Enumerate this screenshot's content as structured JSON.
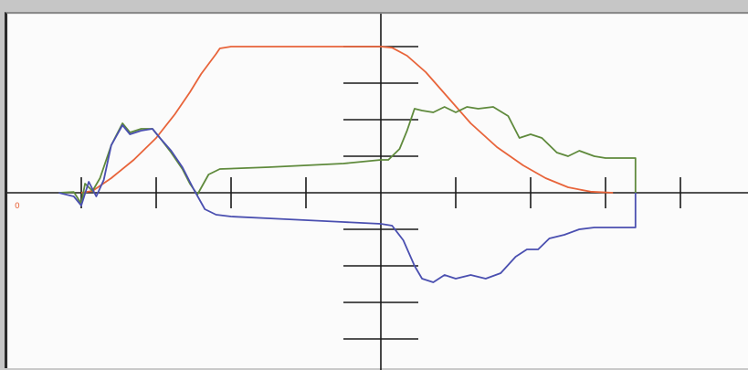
{
  "chart_data": {
    "type": "line",
    "title": "",
    "xlabel": "",
    "ylabel": "",
    "x_range": [
      -5,
      5
    ],
    "y_range": [
      -4,
      4
    ],
    "x_tick_step": 1,
    "y_tick_step": 1,
    "grid": false,
    "legend": "none",
    "origin_label": "0",
    "series": [
      {
        "color": "#e8643a",
        "points": [
          [
            -4,
            0
          ],
          [
            -3.85,
            0.05
          ],
          [
            -3.6,
            0.4
          ],
          [
            -3.3,
            0.9
          ],
          [
            -3,
            1.5
          ],
          [
            -2.75,
            2.15
          ],
          [
            -2.55,
            2.75
          ],
          [
            -2.4,
            3.25
          ],
          [
            -2.2,
            3.8
          ],
          [
            -2.15,
            3.95
          ],
          [
            -2,
            4
          ],
          [
            -1,
            4
          ],
          [
            0,
            4
          ],
          [
            0.15,
            3.97
          ],
          [
            0.35,
            3.75
          ],
          [
            0.6,
            3.3
          ],
          [
            0.9,
            2.6
          ],
          [
            1.2,
            1.9
          ],
          [
            1.55,
            1.25
          ],
          [
            1.9,
            0.75
          ],
          [
            2.2,
            0.4
          ],
          [
            2.5,
            0.15
          ],
          [
            2.8,
            0.03
          ],
          [
            3.1,
            0
          ]
        ]
      },
      {
        "color": "#5f8a3c",
        "points": [
          [
            -4.3,
            0
          ],
          [
            -4.1,
            0.02
          ],
          [
            -4,
            -0.3
          ],
          [
            -3.95,
            0.25
          ],
          [
            -3.85,
            0.05
          ],
          [
            -3.75,
            0.4
          ],
          [
            -3.6,
            1.3
          ],
          [
            -3.45,
            1.9
          ],
          [
            -3.35,
            1.65
          ],
          [
            -3.2,
            1.75
          ],
          [
            -3.05,
            1.75
          ],
          [
            -2.95,
            1.5
          ],
          [
            -2.8,
            1.1
          ],
          [
            -2.65,
            0.65
          ],
          [
            -2.55,
            0.25
          ],
          [
            -2.45,
            -0.05
          ],
          [
            -2.3,
            0.5
          ],
          [
            -2.15,
            0.65
          ],
          [
            -1.5,
            0.7
          ],
          [
            -1,
            0.75
          ],
          [
            -0.5,
            0.8
          ],
          [
            0,
            0.9
          ],
          [
            0.1,
            0.9
          ],
          [
            0.25,
            1.2
          ],
          [
            0.35,
            1.7
          ],
          [
            0.45,
            2.3
          ],
          [
            0.55,
            2.25
          ],
          [
            0.7,
            2.2
          ],
          [
            0.85,
            2.35
          ],
          [
            1,
            2.2
          ],
          [
            1.15,
            2.35
          ],
          [
            1.3,
            2.3
          ],
          [
            1.5,
            2.35
          ],
          [
            1.7,
            2.1
          ],
          [
            1.85,
            1.5
          ],
          [
            2,
            1.6
          ],
          [
            2.15,
            1.5
          ],
          [
            2.35,
            1.1
          ],
          [
            2.5,
            1.0
          ],
          [
            2.65,
            1.15
          ],
          [
            2.85,
            1.0
          ],
          [
            3,
            0.95
          ],
          [
            3.05,
            0.95
          ],
          [
            3.4,
            0.95
          ],
          [
            3.4,
            0
          ]
        ]
      },
      {
        "color": "#4a4fb0",
        "points": [
          [
            -4.3,
            0
          ],
          [
            -4.1,
            -0.1
          ],
          [
            -4,
            -0.35
          ],
          [
            -3.9,
            0.3
          ],
          [
            -3.8,
            -0.1
          ],
          [
            -3.7,
            0.35
          ],
          [
            -3.6,
            1.3
          ],
          [
            -3.45,
            1.85
          ],
          [
            -3.35,
            1.6
          ],
          [
            -3.2,
            1.7
          ],
          [
            -3.05,
            1.75
          ],
          [
            -2.95,
            1.5
          ],
          [
            -2.8,
            1.15
          ],
          [
            -2.65,
            0.7
          ],
          [
            -2.5,
            0.1
          ],
          [
            -2.35,
            -0.45
          ],
          [
            -2.2,
            -0.6
          ],
          [
            -2,
            -0.65
          ],
          [
            -1.5,
            -0.7
          ],
          [
            -1,
            -0.75
          ],
          [
            -0.5,
            -0.8
          ],
          [
            0,
            -0.85
          ],
          [
            0.15,
            -0.9
          ],
          [
            0.3,
            -1.3
          ],
          [
            0.45,
            -2.0
          ],
          [
            0.55,
            -2.35
          ],
          [
            0.7,
            -2.45
          ],
          [
            0.85,
            -2.25
          ],
          [
            1.0,
            -2.35
          ],
          [
            1.2,
            -2.25
          ],
          [
            1.4,
            -2.35
          ],
          [
            1.6,
            -2.2
          ],
          [
            1.8,
            -1.75
          ],
          [
            1.95,
            -1.55
          ],
          [
            2.1,
            -1.55
          ],
          [
            2.25,
            -1.25
          ],
          [
            2.45,
            -1.15
          ],
          [
            2.65,
            -1.0
          ],
          [
            2.85,
            -0.95
          ],
          [
            3.05,
            -0.95
          ],
          [
            3.4,
            -0.95
          ],
          [
            3.4,
            0
          ]
        ]
      }
    ]
  }
}
